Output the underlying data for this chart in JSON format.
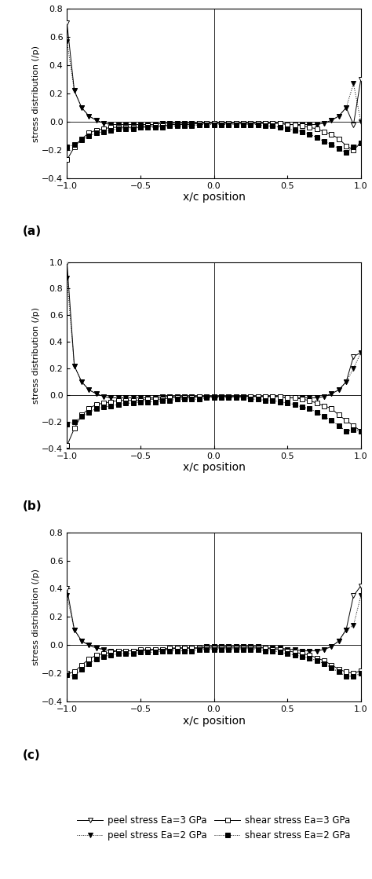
{
  "ylabel": "stress distribution (/p)",
  "xlabel": "x/c position",
  "xlim": [
    -1,
    1
  ],
  "xticks": [
    -1,
    -0.5,
    0,
    0.5,
    1
  ],
  "subplot_a": {
    "ylim": [
      -0.4,
      0.8
    ],
    "yticks": [
      -0.4,
      -0.2,
      0,
      0.2,
      0.4,
      0.6,
      0.8
    ],
    "peel_3_x": [
      -1.0,
      -0.95,
      -0.9,
      -0.85,
      -0.8,
      -0.75,
      -0.7,
      -0.65,
      -0.6,
      -0.55,
      -0.5,
      -0.45,
      -0.4,
      -0.35,
      -0.3,
      -0.25,
      -0.2,
      -0.15,
      -0.1,
      -0.05,
      0.0,
      0.05,
      0.1,
      0.15,
      0.2,
      0.25,
      0.3,
      0.35,
      0.4,
      0.45,
      0.5,
      0.55,
      0.6,
      0.65,
      0.7,
      0.75,
      0.8,
      0.85,
      0.9,
      0.95,
      1.0
    ],
    "peel_3_y": [
      0.7,
      0.22,
      0.1,
      0.04,
      0.01,
      -0.01,
      -0.02,
      -0.02,
      -0.02,
      -0.02,
      -0.02,
      -0.02,
      -0.02,
      -0.01,
      -0.01,
      -0.01,
      -0.01,
      -0.01,
      -0.01,
      -0.01,
      -0.01,
      -0.01,
      -0.01,
      -0.01,
      -0.01,
      -0.01,
      -0.01,
      -0.01,
      -0.01,
      -0.01,
      -0.02,
      -0.02,
      -0.02,
      -0.02,
      -0.02,
      -0.01,
      0.01,
      0.04,
      0.1,
      -0.02,
      0.3
    ],
    "peel_2_x": [
      -1.0,
      -0.95,
      -0.9,
      -0.85,
      -0.8,
      -0.75,
      -0.7,
      -0.65,
      -0.6,
      -0.55,
      -0.5,
      -0.45,
      -0.4,
      -0.35,
      -0.3,
      -0.25,
      -0.2,
      -0.15,
      -0.1,
      -0.05,
      0.0,
      0.05,
      0.1,
      0.15,
      0.2,
      0.25,
      0.3,
      0.35,
      0.4,
      0.45,
      0.5,
      0.55,
      0.6,
      0.65,
      0.7,
      0.75,
      0.8,
      0.85,
      0.9,
      0.95,
      1.0
    ],
    "peel_2_y": [
      0.57,
      0.22,
      0.1,
      0.04,
      0.01,
      -0.01,
      -0.02,
      -0.02,
      -0.02,
      -0.02,
      -0.02,
      -0.02,
      -0.02,
      -0.01,
      -0.01,
      -0.01,
      -0.01,
      -0.01,
      -0.01,
      -0.01,
      -0.01,
      -0.01,
      -0.01,
      -0.01,
      -0.01,
      -0.01,
      -0.01,
      -0.01,
      -0.01,
      -0.01,
      -0.02,
      -0.02,
      -0.02,
      -0.02,
      -0.02,
      -0.01,
      0.01,
      0.04,
      0.1,
      0.27,
      0.0
    ],
    "shear_3_x": [
      -1.0,
      -0.95,
      -0.9,
      -0.85,
      -0.8,
      -0.75,
      -0.7,
      -0.65,
      -0.6,
      -0.55,
      -0.5,
      -0.45,
      -0.4,
      -0.35,
      -0.3,
      -0.25,
      -0.2,
      -0.15,
      -0.1,
      -0.05,
      0.0,
      0.05,
      0.1,
      0.15,
      0.2,
      0.25,
      0.3,
      0.35,
      0.4,
      0.45,
      0.5,
      0.55,
      0.6,
      0.65,
      0.7,
      0.75,
      0.8,
      0.85,
      0.9,
      0.95,
      1.0
    ],
    "shear_3_y": [
      -0.27,
      -0.18,
      -0.12,
      -0.08,
      -0.06,
      -0.05,
      -0.04,
      -0.04,
      -0.04,
      -0.04,
      -0.04,
      -0.03,
      -0.03,
      -0.03,
      -0.02,
      -0.02,
      -0.02,
      -0.02,
      -0.01,
      -0.01,
      -0.01,
      -0.01,
      -0.01,
      -0.01,
      -0.01,
      -0.01,
      -0.01,
      -0.01,
      -0.01,
      -0.01,
      -0.02,
      -0.02,
      -0.03,
      -0.04,
      -0.05,
      -0.07,
      -0.09,
      -0.12,
      -0.17,
      -0.2,
      -0.15
    ],
    "shear_2_x": [
      -1.0,
      -0.95,
      -0.9,
      -0.85,
      -0.8,
      -0.75,
      -0.7,
      -0.65,
      -0.6,
      -0.55,
      -0.5,
      -0.45,
      -0.4,
      -0.35,
      -0.3,
      -0.25,
      -0.2,
      -0.15,
      -0.1,
      -0.05,
      0.0,
      0.05,
      0.1,
      0.15,
      0.2,
      0.25,
      0.3,
      0.35,
      0.4,
      0.45,
      0.5,
      0.55,
      0.6,
      0.65,
      0.7,
      0.75,
      0.8,
      0.85,
      0.9,
      0.95,
      1.0
    ],
    "shear_2_y": [
      -0.18,
      -0.16,
      -0.13,
      -0.1,
      -0.08,
      -0.07,
      -0.06,
      -0.05,
      -0.05,
      -0.05,
      -0.04,
      -0.04,
      -0.04,
      -0.04,
      -0.03,
      -0.03,
      -0.03,
      -0.03,
      -0.02,
      -0.02,
      -0.02,
      -0.02,
      -0.02,
      -0.02,
      -0.02,
      -0.02,
      -0.02,
      -0.03,
      -0.03,
      -0.04,
      -0.05,
      -0.06,
      -0.07,
      -0.09,
      -0.11,
      -0.14,
      -0.16,
      -0.19,
      -0.22,
      -0.18,
      -0.15
    ]
  },
  "subplot_b": {
    "ylim": [
      -0.4,
      1.0
    ],
    "yticks": [
      -0.4,
      -0.2,
      0,
      0.2,
      0.4,
      0.6,
      0.8,
      1.0
    ],
    "peel_3_x": [
      -1.0,
      -0.95,
      -0.9,
      -0.85,
      -0.8,
      -0.75,
      -0.7,
      -0.65,
      -0.6,
      -0.55,
      -0.5,
      -0.45,
      -0.4,
      -0.35,
      -0.3,
      -0.25,
      -0.2,
      -0.15,
      -0.1,
      -0.05,
      0.0,
      0.05,
      0.1,
      0.15,
      0.2,
      0.25,
      0.3,
      0.35,
      0.4,
      0.45,
      0.5,
      0.55,
      0.6,
      0.65,
      0.7,
      0.75,
      0.8,
      0.85,
      0.9,
      0.95,
      1.0
    ],
    "peel_3_y": [
      1.0,
      0.22,
      0.1,
      0.04,
      0.01,
      -0.01,
      -0.02,
      -0.02,
      -0.02,
      -0.02,
      -0.02,
      -0.02,
      -0.02,
      -0.01,
      -0.01,
      -0.01,
      -0.01,
      -0.01,
      -0.01,
      -0.01,
      -0.01,
      -0.01,
      -0.01,
      -0.01,
      -0.01,
      -0.01,
      -0.01,
      -0.01,
      -0.01,
      -0.01,
      -0.02,
      -0.02,
      -0.02,
      -0.02,
      -0.02,
      -0.01,
      0.01,
      0.04,
      0.1,
      0.29,
      0.32
    ],
    "peel_2_x": [
      -1.0,
      -0.95,
      -0.9,
      -0.85,
      -0.8,
      -0.75,
      -0.7,
      -0.65,
      -0.6,
      -0.55,
      -0.5,
      -0.45,
      -0.4,
      -0.35,
      -0.3,
      -0.25,
      -0.2,
      -0.15,
      -0.1,
      -0.05,
      0.0,
      0.05,
      0.1,
      0.15,
      0.2,
      0.25,
      0.3,
      0.35,
      0.4,
      0.45,
      0.5,
      0.55,
      0.6,
      0.65,
      0.7,
      0.75,
      0.8,
      0.85,
      0.9,
      0.95,
      1.0
    ],
    "peel_2_y": [
      0.88,
      0.22,
      0.1,
      0.04,
      0.01,
      -0.01,
      -0.02,
      -0.02,
      -0.02,
      -0.02,
      -0.02,
      -0.02,
      -0.02,
      -0.01,
      -0.01,
      -0.01,
      -0.01,
      -0.01,
      -0.01,
      -0.01,
      -0.01,
      -0.01,
      -0.01,
      -0.01,
      -0.01,
      -0.01,
      -0.01,
      -0.01,
      -0.01,
      -0.01,
      -0.02,
      -0.02,
      -0.02,
      -0.02,
      -0.02,
      -0.01,
      0.01,
      0.04,
      0.1,
      0.2,
      0.32
    ],
    "shear_3_x": [
      -1.0,
      -0.95,
      -0.9,
      -0.85,
      -0.8,
      -0.75,
      -0.7,
      -0.65,
      -0.6,
      -0.55,
      -0.5,
      -0.45,
      -0.4,
      -0.35,
      -0.3,
      -0.25,
      -0.2,
      -0.15,
      -0.1,
      -0.05,
      0.0,
      0.05,
      0.1,
      0.15,
      0.2,
      0.25,
      0.3,
      0.35,
      0.4,
      0.45,
      0.5,
      0.55,
      0.6,
      0.65,
      0.7,
      0.75,
      0.8,
      0.85,
      0.9,
      0.95,
      1.0
    ],
    "shear_3_y": [
      -0.38,
      -0.25,
      -0.15,
      -0.1,
      -0.07,
      -0.06,
      -0.05,
      -0.04,
      -0.04,
      -0.04,
      -0.04,
      -0.03,
      -0.03,
      -0.03,
      -0.02,
      -0.02,
      -0.02,
      -0.02,
      -0.01,
      -0.01,
      -0.01,
      -0.01,
      -0.01,
      -0.01,
      -0.01,
      -0.01,
      -0.01,
      -0.01,
      -0.01,
      -0.01,
      -0.02,
      -0.02,
      -0.03,
      -0.04,
      -0.06,
      -0.08,
      -0.1,
      -0.15,
      -0.19,
      -0.23,
      -0.27
    ],
    "shear_2_x": [
      -1.0,
      -0.95,
      -0.9,
      -0.85,
      -0.8,
      -0.75,
      -0.7,
      -0.65,
      -0.6,
      -0.55,
      -0.5,
      -0.45,
      -0.4,
      -0.35,
      -0.3,
      -0.25,
      -0.2,
      -0.15,
      -0.1,
      -0.05,
      0.0,
      0.05,
      0.1,
      0.15,
      0.2,
      0.25,
      0.3,
      0.35,
      0.4,
      0.45,
      0.5,
      0.55,
      0.6,
      0.65,
      0.7,
      0.75,
      0.8,
      0.85,
      0.9,
      0.95,
      1.0
    ],
    "shear_2_y": [
      -0.22,
      -0.2,
      -0.16,
      -0.13,
      -0.1,
      -0.09,
      -0.08,
      -0.07,
      -0.06,
      -0.06,
      -0.05,
      -0.05,
      -0.05,
      -0.04,
      -0.04,
      -0.03,
      -0.03,
      -0.03,
      -0.03,
      -0.02,
      -0.02,
      -0.02,
      -0.02,
      -0.02,
      -0.02,
      -0.03,
      -0.03,
      -0.04,
      -0.04,
      -0.05,
      -0.06,
      -0.07,
      -0.09,
      -0.1,
      -0.13,
      -0.16,
      -0.19,
      -0.23,
      -0.27,
      -0.26,
      -0.27
    ]
  },
  "subplot_c": {
    "ylim": [
      -0.4,
      0.8
    ],
    "yticks": [
      -0.4,
      -0.2,
      0,
      0.2,
      0.4,
      0.6,
      0.8
    ],
    "peel_3_x": [
      -1.0,
      -0.95,
      -0.9,
      -0.85,
      -0.8,
      -0.75,
      -0.7,
      -0.65,
      -0.6,
      -0.55,
      -0.5,
      -0.45,
      -0.4,
      -0.35,
      -0.3,
      -0.25,
      -0.2,
      -0.15,
      -0.1,
      -0.05,
      0.0,
      0.05,
      0.1,
      0.15,
      0.2,
      0.25,
      0.3,
      0.35,
      0.4,
      0.45,
      0.5,
      0.55,
      0.6,
      0.65,
      0.7,
      0.75,
      0.8,
      0.85,
      0.9,
      0.95,
      1.0
    ],
    "peel_3_y": [
      0.4,
      0.11,
      0.03,
      0.0,
      -0.02,
      -0.03,
      -0.04,
      -0.04,
      -0.04,
      -0.04,
      -0.04,
      -0.04,
      -0.03,
      -0.03,
      -0.03,
      -0.02,
      -0.02,
      -0.02,
      -0.02,
      -0.01,
      -0.01,
      -0.01,
      -0.01,
      -0.01,
      -0.01,
      -0.01,
      -0.01,
      -0.02,
      -0.02,
      -0.02,
      -0.03,
      -0.03,
      -0.04,
      -0.04,
      -0.04,
      -0.03,
      -0.01,
      0.03,
      0.11,
      0.35,
      0.42
    ],
    "peel_2_x": [
      -1.0,
      -0.95,
      -0.9,
      -0.85,
      -0.8,
      -0.75,
      -0.7,
      -0.65,
      -0.6,
      -0.55,
      -0.5,
      -0.45,
      -0.4,
      -0.35,
      -0.3,
      -0.25,
      -0.2,
      -0.15,
      -0.1,
      -0.05,
      0.0,
      0.05,
      0.1,
      0.15,
      0.2,
      0.25,
      0.3,
      0.35,
      0.4,
      0.45,
      0.5,
      0.55,
      0.6,
      0.65,
      0.7,
      0.75,
      0.8,
      0.85,
      0.9,
      0.95,
      1.0
    ],
    "peel_2_y": [
      0.35,
      0.11,
      0.03,
      0.0,
      -0.02,
      -0.03,
      -0.04,
      -0.04,
      -0.04,
      -0.04,
      -0.04,
      -0.04,
      -0.03,
      -0.03,
      -0.03,
      -0.02,
      -0.02,
      -0.02,
      -0.02,
      -0.01,
      -0.01,
      -0.01,
      -0.01,
      -0.01,
      -0.01,
      -0.01,
      -0.01,
      -0.02,
      -0.02,
      -0.02,
      -0.03,
      -0.03,
      -0.04,
      -0.04,
      -0.04,
      -0.03,
      -0.01,
      0.03,
      0.11,
      0.14,
      0.35
    ],
    "shear_3_x": [
      -1.0,
      -0.95,
      -0.9,
      -0.85,
      -0.8,
      -0.75,
      -0.7,
      -0.65,
      -0.6,
      -0.55,
      -0.5,
      -0.45,
      -0.4,
      -0.35,
      -0.3,
      -0.25,
      -0.2,
      -0.15,
      -0.1,
      -0.05,
      0.0,
      0.05,
      0.1,
      0.15,
      0.2,
      0.25,
      0.3,
      0.35,
      0.4,
      0.45,
      0.5,
      0.55,
      0.6,
      0.65,
      0.7,
      0.75,
      0.8,
      0.85,
      0.9,
      0.95,
      1.0
    ],
    "shear_3_y": [
      -0.2,
      -0.19,
      -0.14,
      -0.1,
      -0.07,
      -0.06,
      -0.05,
      -0.04,
      -0.04,
      -0.04,
      -0.03,
      -0.03,
      -0.03,
      -0.03,
      -0.02,
      -0.02,
      -0.02,
      -0.02,
      -0.02,
      -0.02,
      -0.02,
      -0.02,
      -0.02,
      -0.02,
      -0.02,
      -0.02,
      -0.02,
      -0.02,
      -0.03,
      -0.03,
      -0.04,
      -0.05,
      -0.06,
      -0.07,
      -0.09,
      -0.11,
      -0.14,
      -0.17,
      -0.19,
      -0.2,
      -0.18
    ],
    "shear_2_x": [
      -1.0,
      -0.95,
      -0.9,
      -0.85,
      -0.8,
      -0.75,
      -0.7,
      -0.65,
      -0.6,
      -0.55,
      -0.5,
      -0.45,
      -0.4,
      -0.35,
      -0.3,
      -0.25,
      -0.2,
      -0.15,
      -0.1,
      -0.05,
      0.0,
      0.05,
      0.1,
      0.15,
      0.2,
      0.25,
      0.3,
      0.35,
      0.4,
      0.45,
      0.5,
      0.55,
      0.6,
      0.65,
      0.7,
      0.75,
      0.8,
      0.85,
      0.9,
      0.95,
      1.0
    ],
    "shear_2_y": [
      -0.21,
      -0.22,
      -0.17,
      -0.13,
      -0.1,
      -0.08,
      -0.07,
      -0.06,
      -0.06,
      -0.06,
      -0.05,
      -0.05,
      -0.05,
      -0.04,
      -0.04,
      -0.04,
      -0.04,
      -0.04,
      -0.03,
      -0.03,
      -0.03,
      -0.03,
      -0.03,
      -0.03,
      -0.03,
      -0.03,
      -0.03,
      -0.04,
      -0.04,
      -0.05,
      -0.06,
      -0.07,
      -0.08,
      -0.09,
      -0.11,
      -0.13,
      -0.16,
      -0.19,
      -0.22,
      -0.22,
      -0.2
    ]
  },
  "legend": {
    "peel_3_label": "peel stress Ea=3 GPa",
    "peel_2_label": "peel stress Ea=2 GPa",
    "shear_3_label": "shear stress Ea=3 GPa",
    "shear_2_label": "shear stress Ea=2 GPa"
  }
}
